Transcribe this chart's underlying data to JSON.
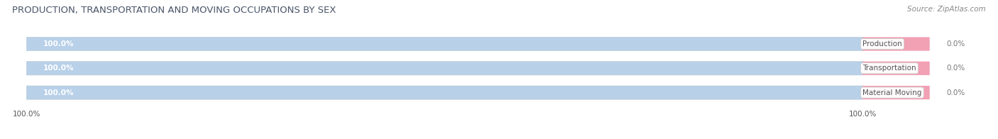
{
  "title": "PRODUCTION, TRANSPORTATION AND MOVING OCCUPATIONS BY SEX",
  "source": "Source: ZipAtlas.com",
  "categories": [
    "Production",
    "Transportation",
    "Material Moving"
  ],
  "male_values": [
    100.0,
    100.0,
    100.0
  ],
  "female_values": [
    0.0,
    0.0,
    0.0
  ],
  "male_color": "#b8d0e8",
  "female_color": "#f2a0b4",
  "bar_bg_color": "#e8e8e8",
  "background_color": "#ffffff",
  "title_fontsize": 9.5,
  "source_fontsize": 7.5,
  "label_fontsize": 7.5,
  "tick_fontsize": 7.5,
  "male_label_color": "#ffffff",
  "female_label_color": "#777777",
  "category_label_color": "#555555",
  "left_tick": "100.0%",
  "right_tick": "100.0%",
  "bar_total": 100,
  "female_bar_min_display": 8
}
